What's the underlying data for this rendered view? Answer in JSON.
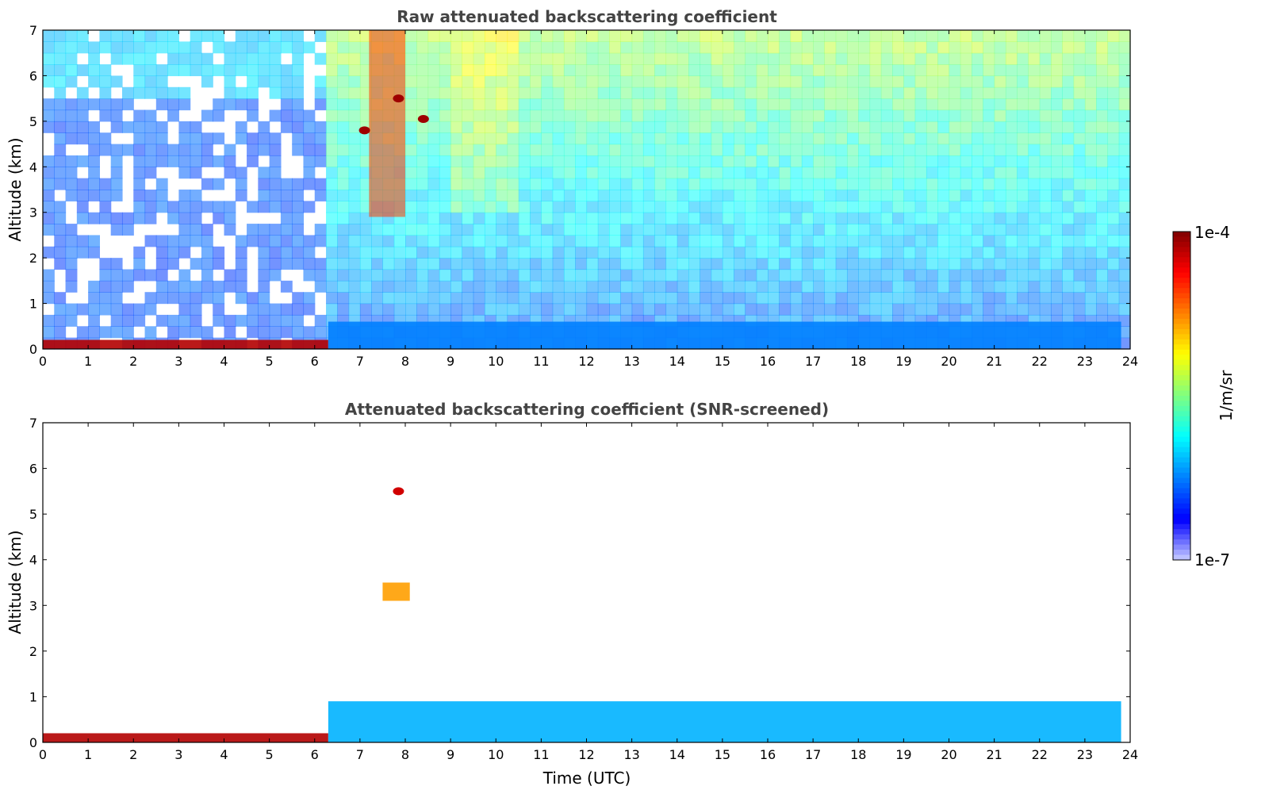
{
  "chart_data": [
    {
      "type": "heatmap",
      "title": "Raw attenuated backscattering coefficient",
      "xlabel": "",
      "ylabel": "Altitude (km)",
      "xlim": [
        0,
        24
      ],
      "ylim": [
        0,
        7
      ],
      "xticks": [
        "0",
        "1",
        "2",
        "3",
        "4",
        "5",
        "6",
        "7",
        "8",
        "9",
        "10",
        "11",
        "12",
        "13",
        "14",
        "15",
        "16",
        "17",
        "18",
        "19",
        "20",
        "21",
        "22",
        "23",
        "24"
      ],
      "yticks": [
        "0",
        "1",
        "2",
        "3",
        "4",
        "5",
        "6",
        "7"
      ],
      "features": [
        {
          "name": "surface layer",
          "x_range": [
            0,
            6.3
          ],
          "y_range": [
            0,
            0.2
          ],
          "level": 0.95
        },
        {
          "name": "boundary layer",
          "x_range": [
            6.3,
            23.8
          ],
          "y_range": [
            0,
            0.6
          ],
          "level": 0.25
        },
        {
          "name": "plume",
          "x_range": [
            7.2,
            8.0
          ],
          "y_range": [
            2.9,
            7
          ],
          "level": 0.82
        },
        {
          "name": "cloud patch",
          "x": 7.1,
          "y": 4.8,
          "level": 0.97
        },
        {
          "name": "cloud patch",
          "x": 7.85,
          "y": 5.5,
          "level": 0.97
        },
        {
          "name": "cloud patch",
          "x": 8.4,
          "y": 5.05,
          "level": 0.97
        }
      ]
    },
    {
      "type": "heatmap",
      "title": "Attenuated backscattering coefficient (SNR-screened)",
      "xlabel": "Time (UTC)",
      "ylabel": "Altitude (km)",
      "xlim": [
        0,
        24
      ],
      "ylim": [
        0,
        7
      ],
      "xticks": [
        "0",
        "1",
        "2",
        "3",
        "4",
        "5",
        "6",
        "7",
        "8",
        "9",
        "10",
        "11",
        "12",
        "13",
        "14",
        "15",
        "16",
        "17",
        "18",
        "19",
        "20",
        "21",
        "22",
        "23",
        "24"
      ],
      "yticks": [
        "0",
        "1",
        "2",
        "3",
        "4",
        "5",
        "6",
        "7"
      ],
      "features": [
        {
          "name": "surface layer",
          "x_range": [
            0,
            6.3
          ],
          "y_range": [
            0,
            0.2
          ],
          "level": 0.95
        },
        {
          "name": "boundary layer",
          "x_range": [
            6.3,
            23.8
          ],
          "y_range": [
            0,
            0.9
          ],
          "level": 0.3
        },
        {
          "name": "aerosol layer",
          "x_range": [
            7.5,
            8.1
          ],
          "y_range": [
            3.1,
            3.5
          ],
          "level": 0.72
        },
        {
          "name": "cloud patch",
          "x": 7.85,
          "y": 5.5,
          "level": 0.92
        }
      ]
    }
  ],
  "colorbar": {
    "max_label": "1e-4",
    "min_label": "1e-7",
    "unit_label": "1/m/sr"
  }
}
